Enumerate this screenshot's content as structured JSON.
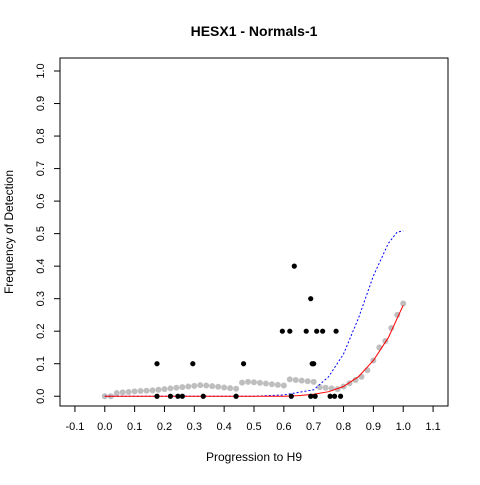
{
  "chart_data": {
    "type": "scatter",
    "title": "HESX1 - Normals-1",
    "xlabel": "Progression to H9",
    "ylabel": "Frequency of Detection",
    "xlim": [
      -0.15,
      1.15
    ],
    "ylim": [
      -0.03,
      1.04
    ],
    "x_ticks": [
      -0.1,
      0.0,
      0.1,
      0.2,
      0.3,
      0.4,
      0.5,
      0.6,
      0.7,
      0.8,
      0.9,
      1.0,
      1.1
    ],
    "x_tick_labels": [
      "-0.1",
      "0.0",
      "0.1",
      "0.2",
      "0.3",
      "0.4",
      "0.5",
      "0.6",
      "0.7",
      "0.8",
      "0.9",
      "1.0",
      "1.1"
    ],
    "y_ticks": [
      0.0,
      0.1,
      0.2,
      0.3,
      0.4,
      0.5,
      0.6,
      0.7,
      0.8,
      0.9,
      1.0
    ],
    "y_tick_labels": [
      "0.0",
      "0.1",
      "0.2",
      "0.3",
      "0.4",
      "0.5",
      "0.6",
      "0.7",
      "0.8",
      "0.9",
      "1.0"
    ],
    "grid": false,
    "legend": "none",
    "colors": {
      "observed_points": "#000000",
      "reference_points": "#bebebe",
      "fitted_curve": "#ff0000",
      "reference_curve": "#0000ff"
    },
    "observed_points": [
      [
        0.175,
        0.1
      ],
      [
        0.175,
        0.0
      ],
      [
        0.22,
        0.0
      ],
      [
        0.245,
        0.0
      ],
      [
        0.26,
        0.0
      ],
      [
        0.295,
        0.1
      ],
      [
        0.33,
        0.0
      ],
      [
        0.44,
        0.0
      ],
      [
        0.465,
        0.1
      ],
      [
        0.595,
        0.2
      ],
      [
        0.62,
        0.2
      ],
      [
        0.625,
        0.0
      ],
      [
        0.635,
        0.4
      ],
      [
        0.675,
        0.2
      ],
      [
        0.69,
        0.3
      ],
      [
        0.69,
        0.0
      ],
      [
        0.695,
        0.1
      ],
      [
        0.7,
        0.1
      ],
      [
        0.705,
        0.0
      ],
      [
        0.71,
        0.2
      ],
      [
        0.73,
        0.2
      ],
      [
        0.755,
        0.0
      ],
      [
        0.77,
        0.0
      ],
      [
        0.775,
        0.2
      ],
      [
        0.79,
        0.0
      ]
    ],
    "reference_points": [
      [
        0.0,
        0.0
      ],
      [
        0.02,
        0.0
      ],
      [
        0.04,
        0.01
      ],
      [
        0.06,
        0.012
      ],
      [
        0.08,
        0.013
      ],
      [
        0.1,
        0.015
      ],
      [
        0.12,
        0.016
      ],
      [
        0.14,
        0.017
      ],
      [
        0.16,
        0.018
      ],
      [
        0.18,
        0.02
      ],
      [
        0.2,
        0.022
      ],
      [
        0.22,
        0.024
      ],
      [
        0.24,
        0.026
      ],
      [
        0.26,
        0.028
      ],
      [
        0.28,
        0.03
      ],
      [
        0.3,
        0.032
      ],
      [
        0.32,
        0.034
      ],
      [
        0.34,
        0.033
      ],
      [
        0.36,
        0.031
      ],
      [
        0.38,
        0.029
      ],
      [
        0.4,
        0.027
      ],
      [
        0.42,
        0.025
      ],
      [
        0.44,
        0.023
      ],
      [
        0.46,
        0.042
      ],
      [
        0.48,
        0.044
      ],
      [
        0.5,
        0.043
      ],
      [
        0.52,
        0.041
      ],
      [
        0.54,
        0.039
      ],
      [
        0.56,
        0.037
      ],
      [
        0.58,
        0.035
      ],
      [
        0.6,
        0.033
      ],
      [
        0.62,
        0.052
      ],
      [
        0.64,
        0.05
      ],
      [
        0.66,
        0.048
      ],
      [
        0.68,
        0.046
      ],
      [
        0.7,
        0.044
      ],
      [
        0.72,
        0.028
      ],
      [
        0.74,
        0.026
      ],
      [
        0.76,
        0.024
      ],
      [
        0.78,
        0.022
      ],
      [
        0.8,
        0.03
      ],
      [
        0.82,
        0.04
      ],
      [
        0.84,
        0.05
      ],
      [
        0.86,
        0.06
      ],
      [
        0.88,
        0.08
      ],
      [
        0.9,
        0.11
      ],
      [
        0.92,
        0.15
      ],
      [
        0.94,
        0.17
      ],
      [
        0.96,
        0.21
      ],
      [
        0.98,
        0.25
      ],
      [
        1.0,
        0.285
      ]
    ],
    "fitted_curve": {
      "x": [
        0.0,
        0.1,
        0.2,
        0.3,
        0.4,
        0.5,
        0.6,
        0.65,
        0.7,
        0.75,
        0.8,
        0.85,
        0.9,
        0.95,
        1.0
      ],
      "y": [
        0.0,
        0.0,
        0.0,
        0.0,
        0.0,
        0.0,
        0.0,
        0.002,
        0.006,
        0.014,
        0.03,
        0.06,
        0.11,
        0.18,
        0.28
      ]
    },
    "reference_curve": {
      "x": [
        0.0,
        0.1,
        0.2,
        0.3,
        0.4,
        0.5,
        0.6,
        0.7,
        0.75,
        0.8,
        0.85,
        0.9,
        0.95,
        0.98,
        1.0
      ],
      "y": [
        0.0,
        0.0,
        0.0,
        0.0,
        0.0,
        0.0,
        0.004,
        0.02,
        0.06,
        0.13,
        0.24,
        0.37,
        0.47,
        0.505,
        0.508
      ]
    }
  }
}
